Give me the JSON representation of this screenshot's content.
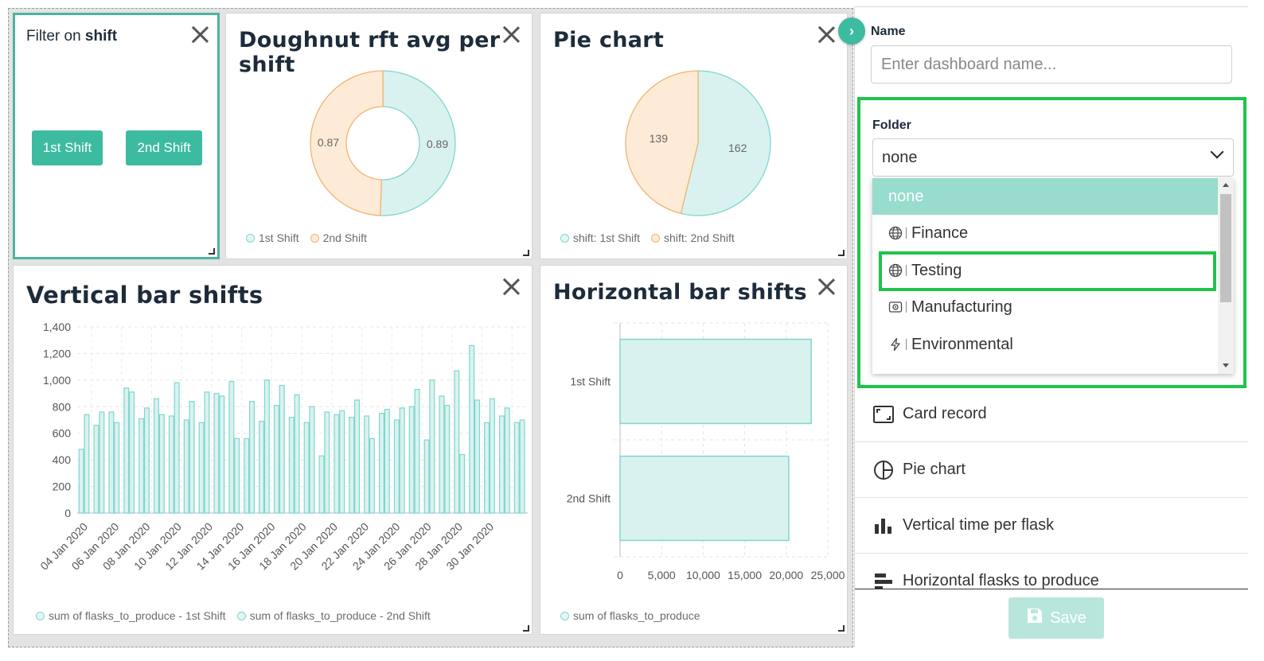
{
  "filter_card": {
    "label_prefix": "Filter on ",
    "label_field": "shift",
    "buttons": [
      "1st Shift",
      "2nd Shift"
    ]
  },
  "doughnut": {
    "title": "Doughnut rft avg per shift",
    "chart_data": {
      "type": "pie",
      "variant": "doughnut",
      "categories": [
        "1st Shift",
        "2nd Shift"
      ],
      "values": [
        0.89,
        0.87
      ],
      "value_labels": [
        "0.89",
        "0.87"
      ],
      "legend": "bottom",
      "colors": [
        "#7fd6ce",
        "#f3b36d"
      ]
    }
  },
  "pie": {
    "title": "Pie chart",
    "chart_data": {
      "type": "pie",
      "categories": [
        "shift: 1st Shift",
        "shift: 2nd Shift"
      ],
      "values": [
        162,
        139
      ],
      "value_labels": [
        "162",
        "139"
      ],
      "legend": "bottom",
      "colors": [
        "#7fd6ce",
        "#f3b36d"
      ]
    }
  },
  "vertical_bar": {
    "title": "Vertical bar shifts",
    "chart_data": {
      "type": "bar",
      "x_tick_labels": [
        "04 Jan 2020",
        "06 Jan 2020",
        "08 Jan 2020",
        "10 Jan 2020",
        "12 Jan 2020",
        "14 Jan 2020",
        "16 Jan 2020",
        "18 Jan 2020",
        "20 Jan 2020",
        "22 Jan 2020",
        "24 Jan 2020",
        "26 Jan 2020",
        "28 Jan 2020",
        "30 Jan 2020"
      ],
      "y_tick_labels": [
        "0",
        "200",
        "400",
        "600",
        "800",
        "1,000",
        "1,200",
        "1,400"
      ],
      "ylim": [
        0,
        1400
      ],
      "grid": true,
      "legend": "bottom",
      "series": [
        {
          "name": "sum of flasks_to_produce - 1st Shift",
          "values": [
            480,
            660,
            760,
            940,
            710,
            860,
            730,
            700,
            680,
            900,
            990,
            560,
            690,
            810,
            720,
            680,
            430,
            740,
            720,
            730,
            750,
            700,
            800,
            550,
            880,
            1070,
            1260,
            680,
            730,
            680
          ]
        },
        {
          "name": "sum of flasks_to_produce - 2nd Shift",
          "values": [
            740,
            760,
            680,
            910,
            790,
            740,
            980,
            840,
            910,
            880,
            560,
            840,
            1000,
            960,
            890,
            800,
            760,
            770,
            850,
            560,
            780,
            790,
            930,
            1000,
            810,
            440,
            850,
            860,
            790,
            700
          ]
        }
      ]
    }
  },
  "horizontal_bar": {
    "title": "Horizontal bar shifts",
    "chart_data": {
      "type": "bar",
      "orientation": "horizontal",
      "categories": [
        "1st Shift",
        "2nd Shift"
      ],
      "series": [
        {
          "name": "sum of flasks_to_produce",
          "values": [
            23000,
            20300
          ]
        }
      ],
      "x_tick_labels": [
        "0",
        "5,000",
        "10,000",
        "15,000",
        "20,000",
        "25,000"
      ],
      "xlim": [
        0,
        25000
      ],
      "grid": true,
      "legend": "bottom"
    }
  },
  "panel": {
    "name_label": "Name",
    "name_placeholder": "Enter dashboard name...",
    "folder_label": "Folder",
    "folder_value": "none",
    "folder_options": [
      {
        "label": "none",
        "icon": ""
      },
      {
        "label": "Finance",
        "icon": "globe-icon"
      },
      {
        "label": "Testing",
        "icon": "globe-icon"
      },
      {
        "label": "Manufacturing",
        "icon": "camera-icon"
      },
      {
        "label": "Environmental",
        "icon": "lightning-icon"
      }
    ],
    "chart_list": [
      {
        "label": "Card record",
        "icon": "card-icon"
      },
      {
        "label": "Pie chart",
        "icon": "pie-chart-icon"
      },
      {
        "label": "Vertical time per flask",
        "icon": "vertical-bar-icon"
      },
      {
        "label": "Horizontal flasks to produce",
        "icon": "horizontal-bar-icon"
      }
    ],
    "save_label": "Save",
    "highlight_color": "#1ec44b",
    "accent_color": "#3dbba0"
  }
}
